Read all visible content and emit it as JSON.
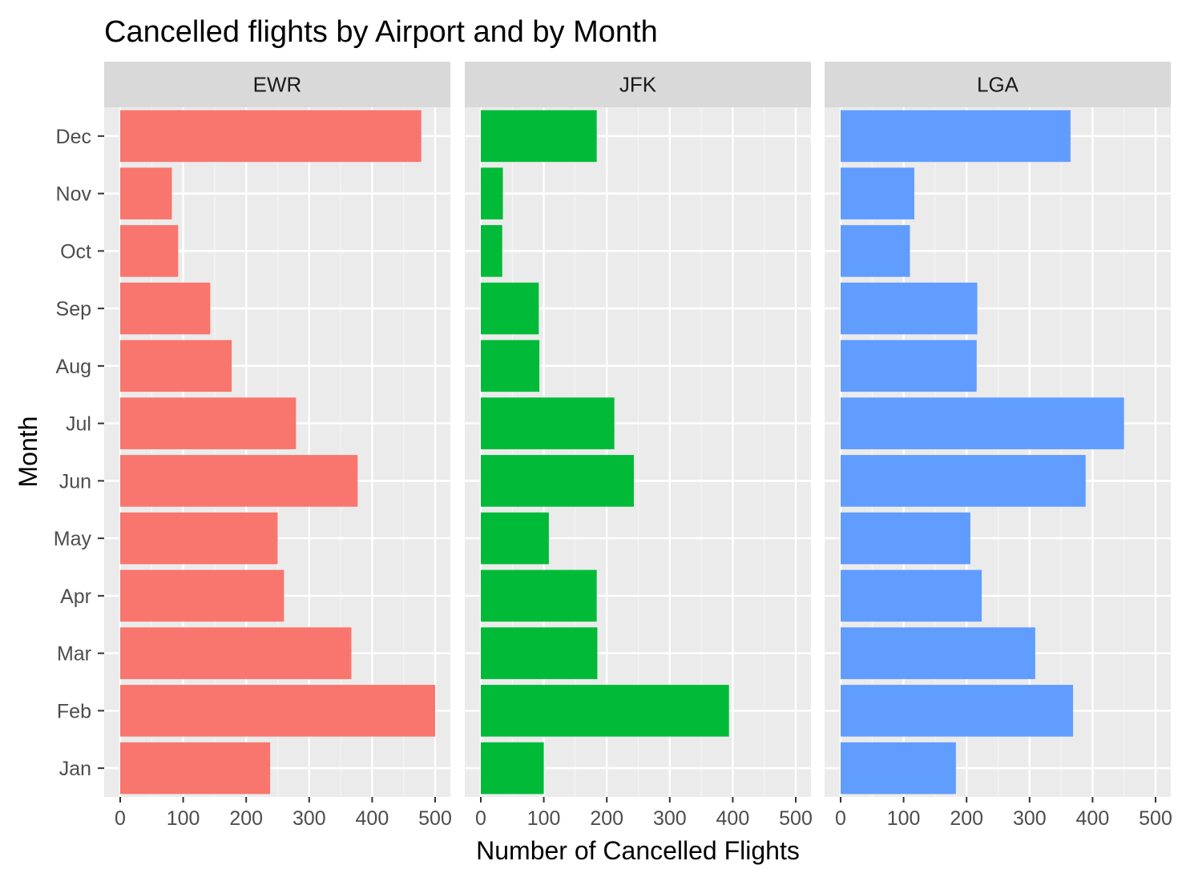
{
  "chart_data": {
    "type": "bar",
    "orientation": "horizontal",
    "title": "Cancelled flights by Airport and by Month",
    "xlabel": "Number of Cancelled Flights",
    "ylabel": "Month",
    "xlim": [
      0,
      500
    ],
    "x_ticks": [
      0,
      100,
      200,
      300,
      400,
      500
    ],
    "categories": [
      "Jan",
      "Feb",
      "Mar",
      "Apr",
      "May",
      "Jun",
      "Jul",
      "Aug",
      "Sep",
      "Oct",
      "Nov",
      "Dec"
    ],
    "grid": true,
    "legend": "none",
    "panels": [
      {
        "name": "EWR",
        "color": "#F8766D",
        "values": [
          238,
          500,
          367,
          260,
          250,
          377,
          279,
          177,
          143,
          92,
          82,
          478
        ]
      },
      {
        "name": "JFK",
        "color": "#00BA38",
        "values": [
          100,
          394,
          185,
          184,
          108,
          243,
          212,
          93,
          92,
          34,
          35,
          184
        ]
      },
      {
        "name": "LGA",
        "color": "#619CFF",
        "values": [
          183,
          369,
          309,
          224,
          206,
          389,
          450,
          216,
          217,
          110,
          117,
          365
        ]
      }
    ]
  },
  "colors": {
    "panel_background": "#EBEBEB",
    "strip_background": "#D9D9D9",
    "grid_major": "#FFFFFF",
    "grid_minor": "#F5F5F5"
  }
}
